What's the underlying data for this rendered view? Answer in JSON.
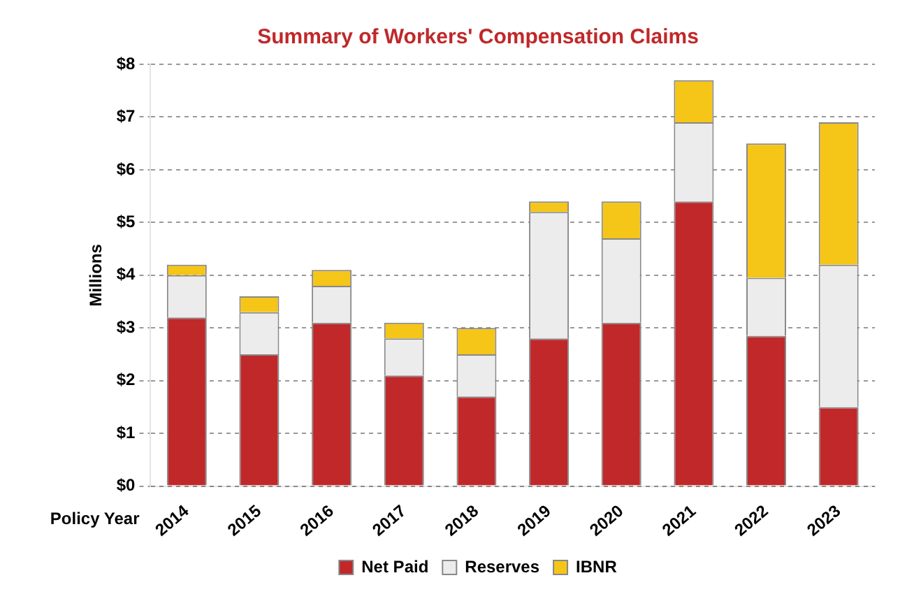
{
  "chart_data": {
    "type": "bar",
    "title": "Summary of Workers' Compensation Claims",
    "xlabel": "Policy Year",
    "ylabel": "Millions",
    "categories": [
      "2014",
      "2015",
      "2016",
      "2017",
      "2018",
      "2019",
      "2020",
      "2021",
      "2022",
      "2023"
    ],
    "stacked": true,
    "series": [
      {
        "name": "Net Paid",
        "color": "#c0282a",
        "values": [
          3.2,
          2.5,
          3.1,
          2.1,
          1.7,
          2.8,
          3.1,
          5.4,
          2.85,
          1.5
        ]
      },
      {
        "name": "Reserves",
        "color": "#ececec",
        "values": [
          0.8,
          0.8,
          0.7,
          0.7,
          0.8,
          2.4,
          1.6,
          1.5,
          1.1,
          2.7
        ]
      },
      {
        "name": "IBNR",
        "color": "#f5c518",
        "values": [
          0.2,
          0.3,
          0.3,
          0.3,
          0.5,
          0.2,
          0.7,
          0.8,
          2.55,
          2.7
        ]
      }
    ],
    "ylim": [
      0,
      8
    ],
    "yticks": [
      {
        "value": 0,
        "label": "$0"
      },
      {
        "value": 1,
        "label": "$1"
      },
      {
        "value": 2,
        "label": "$2"
      },
      {
        "value": 3,
        "label": "$3"
      },
      {
        "value": 4,
        "label": "$4"
      },
      {
        "value": 5,
        "label": "$5"
      },
      {
        "value": 6,
        "label": "$6"
      },
      {
        "value": 7,
        "label": "$7"
      },
      {
        "value": 8,
        "label": "$8"
      }
    ],
    "grid": "y",
    "legend": "bottom"
  }
}
